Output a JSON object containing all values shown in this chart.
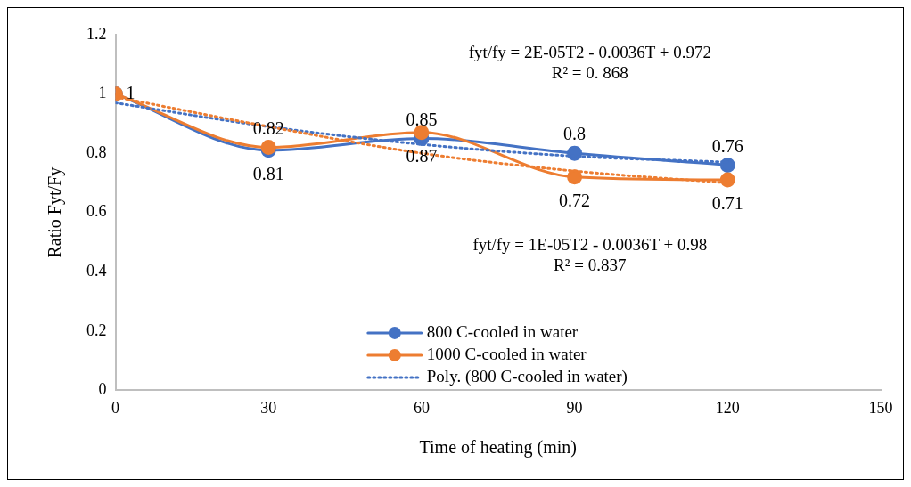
{
  "chart_data": {
    "type": "line",
    "xlabel": "Time of heating (min)",
    "ylabel": "Ratio Fyt/Fy",
    "xlim": [
      0,
      150
    ],
    "xticks": [
      0,
      30,
      60,
      90,
      120,
      150
    ],
    "ylim": [
      0,
      1.2
    ],
    "yticks": [
      0,
      0.2,
      0.4,
      0.6,
      0.8,
      1,
      1.2
    ],
    "grid": false,
    "legend": "bottom",
    "marker": "circle",
    "annotations": [
      "fyt/fy = 2E-05T2 - 0.0036T + 0.972\nR² = 0. 868",
      "fyt/fy = 1E-05T2 - 0.0036T + 0.98\nR² = 0.837"
    ],
    "series": [
      {
        "name": "800 C-cooled in water",
        "color": "#4472c4",
        "x": [
          0,
          30,
          60,
          90,
          120
        ],
        "values": [
          1,
          0.81,
          0.85,
          0.8,
          0.76
        ],
        "value_labels": [
          "1",
          "0.81",
          "0.85",
          "0.8",
          "0.76"
        ]
      },
      {
        "name": "1000 C-cooled in water",
        "color": "#ed7d31",
        "x": [
          0,
          30,
          60,
          90,
          120
        ],
        "values": [
          1,
          0.82,
          0.87,
          0.72,
          0.71
        ],
        "value_labels": [
          null,
          "0.82",
          "0.87",
          "0.72",
          "0.71"
        ]
      },
      {
        "name": "Poly. (800 C-cooled in water)",
        "color": "#4472c4",
        "marker": "none",
        "line_style": "dotted",
        "x": [
          0,
          30,
          60,
          90,
          120
        ],
        "values": [
          0.97,
          0.89,
          0.83,
          0.79,
          0.77
        ]
      },
      {
        "color": "#ed7d31",
        "marker": "none",
        "line_style": "dotted",
        "x": [
          0,
          30,
          60,
          90,
          120
        ],
        "values": [
          0.99,
          0.89,
          0.8,
          0.74,
          0.7
        ]
      }
    ]
  }
}
